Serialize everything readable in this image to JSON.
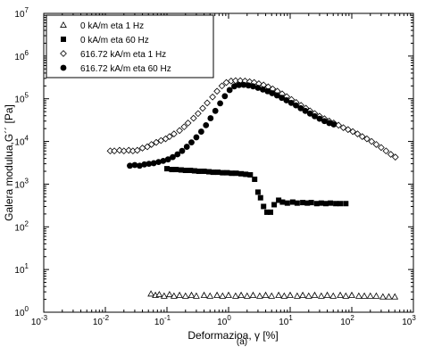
{
  "chart_data": {
    "type": "scatter",
    "title": "",
    "xlabel": "Deformazioa, γ [%]",
    "ylabel": "Galera modulua,G´´ [Pa]",
    "xscale": "log",
    "yscale": "log",
    "xlim": [
      0.001,
      1000
    ],
    "ylim": [
      1,
      10000000
    ],
    "grid": false,
    "legend_position": "top-left",
    "x_ticks": [
      {
        "value": 0.001,
        "base": "10",
        "exp": "-3"
      },
      {
        "value": 0.01,
        "base": "10",
        "exp": "-2"
      },
      {
        "value": 0.1,
        "base": "10",
        "exp": "-1"
      },
      {
        "value": 1,
        "base": "10",
        "exp": "0"
      },
      {
        "value": 10,
        "base": "10",
        "exp": "1"
      },
      {
        "value": 100,
        "base": "10",
        "exp": "2"
      },
      {
        "value": 1000,
        "base": "10",
        "exp": "3"
      }
    ],
    "y_ticks": [
      {
        "value": 1,
        "base": "10",
        "exp": "0"
      },
      {
        "value": 10,
        "base": "10",
        "exp": "1"
      },
      {
        "value": 100,
        "base": "10",
        "exp": "2"
      },
      {
        "value": 1000,
        "base": "10",
        "exp": "3"
      },
      {
        "value": 10000,
        "base": "10",
        "exp": "4"
      },
      {
        "value": 100000,
        "base": "10",
        "exp": "5"
      },
      {
        "value": 1000000,
        "base": "10",
        "exp": "6"
      },
      {
        "value": 10000000,
        "base": "10",
        "exp": "7"
      }
    ],
    "caption": "(a)",
    "series": [
      {
        "name": "0 kA/m eta 1 Hz",
        "marker": "triangle-open",
        "points": [
          [
            0.055,
            2.7
          ],
          [
            0.065,
            2.5
          ],
          [
            0.075,
            2.6
          ],
          [
            0.09,
            2.4
          ],
          [
            0.11,
            2.6
          ],
          [
            0.13,
            2.4
          ],
          [
            0.16,
            2.5
          ],
          [
            0.2,
            2.4
          ],
          [
            0.25,
            2.5
          ],
          [
            0.3,
            2.4
          ],
          [
            0.4,
            2.5
          ],
          [
            0.5,
            2.4
          ],
          [
            0.65,
            2.5
          ],
          [
            0.8,
            2.4
          ],
          [
            1,
            2.5
          ],
          [
            1.3,
            2.4
          ],
          [
            1.6,
            2.5
          ],
          [
            2,
            2.4
          ],
          [
            2.5,
            2.5
          ],
          [
            3.2,
            2.4
          ],
          [
            4,
            2.5
          ],
          [
            5,
            2.4
          ],
          [
            6.5,
            2.5
          ],
          [
            8,
            2.4
          ],
          [
            10,
            2.5
          ],
          [
            13,
            2.4
          ],
          [
            16,
            2.5
          ],
          [
            20,
            2.4
          ],
          [
            25,
            2.5
          ],
          [
            32,
            2.4
          ],
          [
            40,
            2.5
          ],
          [
            50,
            2.4
          ],
          [
            65,
            2.5
          ],
          [
            80,
            2.4
          ],
          [
            100,
            2.5
          ],
          [
            130,
            2.4
          ],
          [
            160,
            2.4
          ],
          [
            200,
            2.4
          ],
          [
            250,
            2.4
          ],
          [
            320,
            2.3
          ],
          [
            400,
            2.3
          ],
          [
            500,
            2.3
          ]
        ]
      },
      {
        "name": "0 kA/m eta 60 Hz",
        "marker": "square-filled",
        "points": [
          [
            0.1,
            2300
          ],
          [
            0.12,
            2200
          ],
          [
            0.14,
            2200
          ],
          [
            0.17,
            2150
          ],
          [
            0.2,
            2100
          ],
          [
            0.24,
            2100
          ],
          [
            0.28,
            2050
          ],
          [
            0.33,
            2000
          ],
          [
            0.4,
            2000
          ],
          [
            0.48,
            1950
          ],
          [
            0.56,
            1900
          ],
          [
            0.67,
            1900
          ],
          [
            0.8,
            1850
          ],
          [
            0.95,
            1850
          ],
          [
            1.12,
            1800
          ],
          [
            1.33,
            1800
          ],
          [
            1.6,
            1750
          ],
          [
            1.9,
            1700
          ],
          [
            2.25,
            1650
          ],
          [
            2.65,
            1300
          ],
          [
            3.0,
            650
          ],
          [
            3.3,
            480
          ],
          [
            3.7,
            300
          ],
          [
            4.2,
            220
          ],
          [
            4.8,
            220
          ],
          [
            5.5,
            330
          ],
          [
            6.5,
            420
          ],
          [
            7.5,
            380
          ],
          [
            9,
            360
          ],
          [
            11,
            380
          ],
          [
            13,
            360
          ],
          [
            16,
            370
          ],
          [
            19,
            360
          ],
          [
            22,
            370
          ],
          [
            27,
            350
          ],
          [
            32,
            360
          ],
          [
            38,
            350
          ],
          [
            45,
            360
          ],
          [
            55,
            350
          ],
          [
            65,
            350
          ],
          [
            80,
            350
          ]
        ]
      },
      {
        "name": "616.72 kA/m eta 1 Hz",
        "marker": "diamond-open",
        "points": [
          [
            0.012,
            6000
          ],
          [
            0.014,
            6000
          ],
          [
            0.017,
            6200
          ],
          [
            0.02,
            6000
          ],
          [
            0.024,
            6200
          ],
          [
            0.028,
            6000
          ],
          [
            0.033,
            6200
          ],
          [
            0.04,
            7000
          ],
          [
            0.048,
            7500
          ],
          [
            0.056,
            8500
          ],
          [
            0.067,
            9500
          ],
          [
            0.08,
            10500
          ],
          [
            0.095,
            11500
          ],
          [
            0.11,
            13000
          ],
          [
            0.13,
            15000
          ],
          [
            0.16,
            18000
          ],
          [
            0.19,
            22000
          ],
          [
            0.22,
            27000
          ],
          [
            0.27,
            35000
          ],
          [
            0.32,
            45000
          ],
          [
            0.38,
            60000
          ],
          [
            0.45,
            80000
          ],
          [
            0.55,
            110000
          ],
          [
            0.65,
            150000
          ],
          [
            0.78,
            200000
          ],
          [
            0.92,
            240000
          ],
          [
            1.1,
            260000
          ],
          [
            1.3,
            265000
          ],
          [
            1.55,
            265000
          ],
          [
            1.85,
            260000
          ],
          [
            2.2,
            250000
          ],
          [
            2.6,
            240000
          ],
          [
            3.1,
            225000
          ],
          [
            3.7,
            210000
          ],
          [
            4.4,
            190000
          ],
          [
            5.2,
            170000
          ],
          [
            6.2,
            150000
          ],
          [
            7.4,
            130000
          ],
          [
            8.8,
            112000
          ],
          [
            10.5,
            96000
          ],
          [
            12.5,
            82000
          ],
          [
            15,
            70000
          ],
          [
            18,
            60000
          ],
          [
            21,
            52000
          ],
          [
            25,
            45000
          ],
          [
            30,
            39000
          ],
          [
            36,
            34000
          ],
          [
            43,
            30000
          ],
          [
            51,
            27000
          ],
          [
            61,
            24000
          ],
          [
            73,
            21000
          ],
          [
            87,
            19000
          ],
          [
            104,
            17000
          ],
          [
            124,
            15000
          ],
          [
            148,
            13000
          ],
          [
            176,
            11500
          ],
          [
            210,
            10000
          ],
          [
            250,
            8500
          ],
          [
            300,
            7200
          ],
          [
            360,
            6000
          ],
          [
            430,
            5000
          ],
          [
            510,
            4300
          ]
        ]
      },
      {
        "name": "616.72 kA/m eta 60 Hz",
        "marker": "circle-filled",
        "points": [
          [
            0.025,
            2700
          ],
          [
            0.03,
            2800
          ],
          [
            0.036,
            2700
          ],
          [
            0.043,
            2900
          ],
          [
            0.051,
            3000
          ],
          [
            0.061,
            3100
          ],
          [
            0.073,
            3300
          ],
          [
            0.087,
            3500
          ],
          [
            0.104,
            3800
          ],
          [
            0.124,
            4300
          ],
          [
            0.148,
            5000
          ],
          [
            0.176,
            6000
          ],
          [
            0.21,
            7500
          ],
          [
            0.25,
            9500
          ],
          [
            0.3,
            12500
          ],
          [
            0.36,
            17000
          ],
          [
            0.43,
            24000
          ],
          [
            0.51,
            35000
          ],
          [
            0.61,
            52000
          ],
          [
            0.73,
            78000
          ],
          [
            0.87,
            115000
          ],
          [
            1.04,
            160000
          ],
          [
            1.24,
            195000
          ],
          [
            1.48,
            210000
          ],
          [
            1.76,
            212000
          ],
          [
            2.1,
            205000
          ],
          [
            2.5,
            195000
          ],
          [
            3.0,
            180000
          ],
          [
            3.6,
            165000
          ],
          [
            4.3,
            150000
          ],
          [
            5.1,
            135000
          ],
          [
            6.1,
            120000
          ],
          [
            7.3,
            105000
          ],
          [
            8.7,
            92000
          ],
          [
            10.4,
            80000
          ],
          [
            12.4,
            70000
          ],
          [
            14.8,
            60000
          ],
          [
            17.6,
            52000
          ],
          [
            21,
            45000
          ],
          [
            25,
            39000
          ],
          [
            30,
            34000
          ],
          [
            36,
            30000
          ],
          [
            43,
            27000
          ],
          [
            51,
            25000
          ]
        ]
      }
    ]
  }
}
